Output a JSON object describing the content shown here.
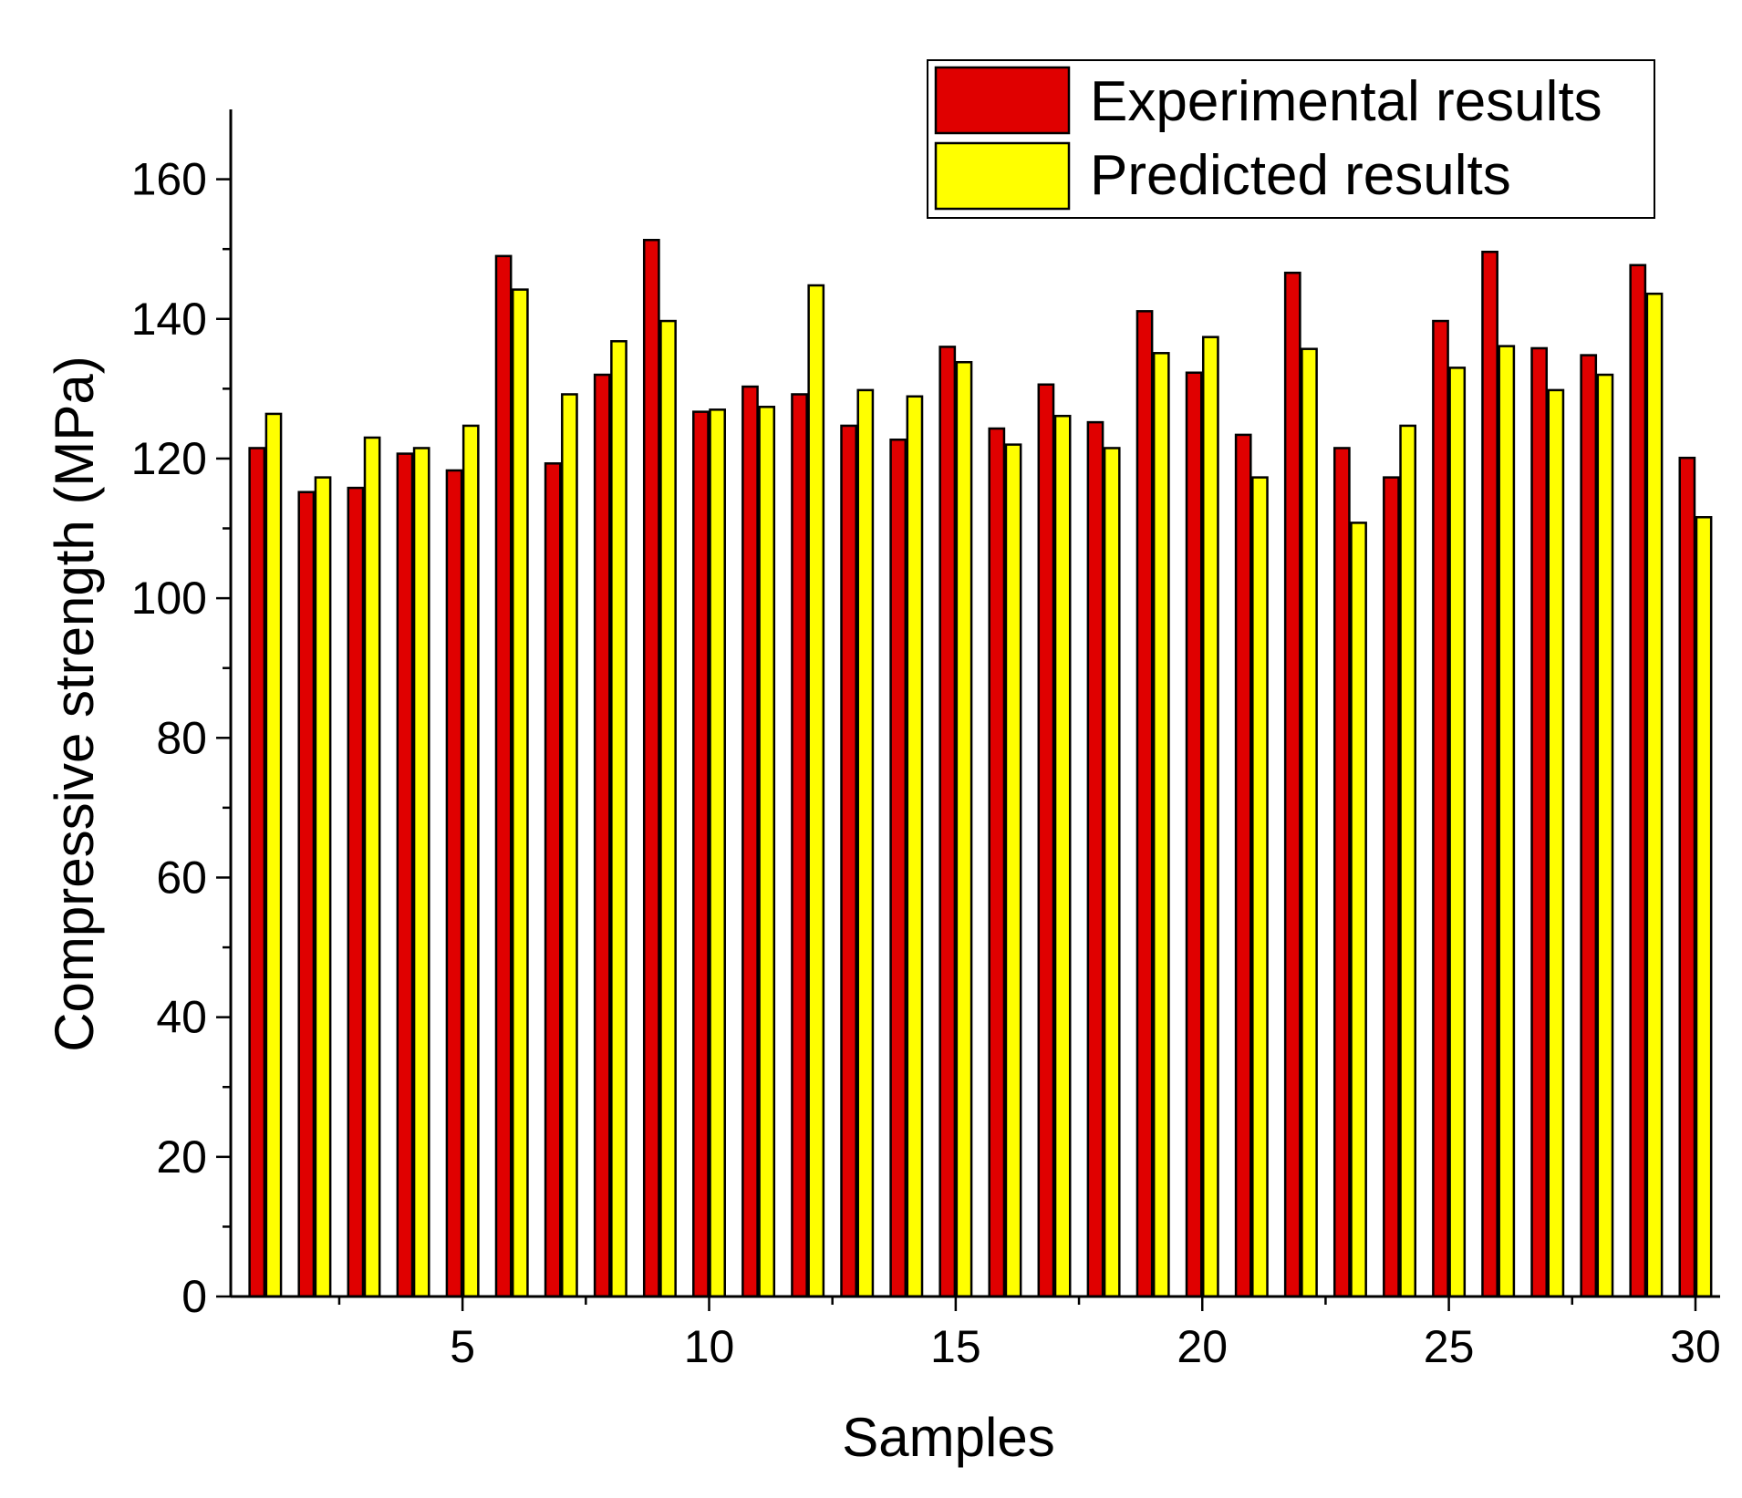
{
  "chart_data": {
    "type": "bar",
    "title": "",
    "xlabel": "Samples",
    "ylabel": "Compressive strength (MPa)",
    "ylim": [
      0,
      170
    ],
    "xlim": [
      0.3,
      30.5
    ],
    "yticks": [
      0,
      20,
      40,
      60,
      80,
      100,
      120,
      140,
      160
    ],
    "ytick_labels": [
      "0",
      "20",
      "40",
      "60",
      "80",
      "100",
      "120",
      "140",
      "160"
    ],
    "xticks": [
      5,
      10,
      15,
      20,
      25,
      30
    ],
    "xtick_labels": [
      "5",
      "10",
      "15",
      "20",
      "25",
      "30"
    ],
    "grid": false,
    "legend_position": "top-right",
    "categories": [
      1,
      2,
      3,
      4,
      5,
      6,
      7,
      8,
      9,
      10,
      11,
      12,
      13,
      14,
      15,
      16,
      17,
      18,
      19,
      20,
      21,
      22,
      23,
      24,
      25,
      26,
      27,
      28,
      29,
      30
    ],
    "series": [
      {
        "name": "Experimental results",
        "color": "#e00000",
        "values": [
          121.5,
          115.2,
          115.8,
          120.7,
          118.3,
          149.0,
          119.3,
          132.0,
          151.3,
          126.7,
          130.3,
          129.2,
          124.7,
          122.7,
          136.0,
          124.3,
          130.6,
          125.2,
          141.1,
          132.3,
          123.4,
          146.6,
          121.5,
          117.3,
          139.7,
          149.6,
          135.8,
          134.8,
          147.7,
          120.1
        ]
      },
      {
        "name": "Predicted results",
        "color": "#ffff00",
        "values": [
          126.4,
          117.3,
          123.0,
          121.5,
          124.7,
          144.2,
          129.2,
          136.8,
          139.7,
          127.0,
          127.4,
          144.8,
          129.8,
          128.9,
          133.8,
          122.0,
          126.1,
          121.5,
          135.1,
          137.4,
          117.3,
          135.7,
          110.8,
          124.7,
          133.0,
          136.1,
          129.8,
          132.0,
          143.6,
          111.6
        ]
      }
    ]
  }
}
